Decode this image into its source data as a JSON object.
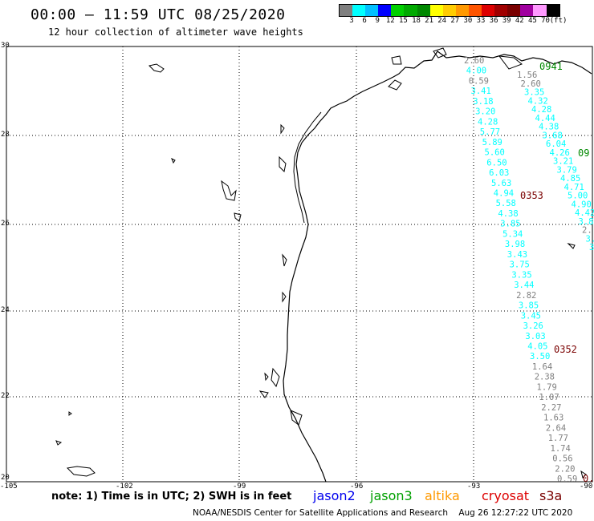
{
  "title": "00:00 – 11:59 UTC 08/25/2020",
  "subtitle": "12 hour collection of altimeter wave heights",
  "scale": {
    "unit_label": "(ft)",
    "colors": [
      "#7f7f7f",
      "#00ffff",
      "#00bfff",
      "#0000ff",
      "#00d000",
      "#00aa00",
      "#008800",
      "#ffff00",
      "#ffcc00",
      "#ff9900",
      "#ff5500",
      "#dd0000",
      "#a00000",
      "#7a0000",
      "#a000a0",
      "#ff99ff",
      "#000000"
    ],
    "labels": [
      "3",
      "6",
      "9",
      "12",
      "15",
      "18",
      "21",
      "24",
      "27",
      "30",
      "33",
      "36",
      "39",
      "42",
      "45",
      "70"
    ]
  },
  "axes": {
    "lat_labels": [
      "30",
      "28",
      "26",
      "24",
      "22",
      "20"
    ],
    "lon_labels": [
      "-105",
      "-102",
      "-99",
      "-96",
      "-93",
      "-90"
    ]
  },
  "passes": [
    {
      "label": "0941",
      "color": "#008800"
    },
    {
      "label": "09",
      "color": "#008800"
    },
    {
      "label": "0353",
      "color": "#7a0000"
    },
    {
      "label": "0352",
      "color": "#7a0000"
    },
    {
      "label": "0.",
      "color": "#7a0000"
    }
  ],
  "track_a": {
    "values": [
      "2.60",
      "4.00",
      "0.59",
      "3.41",
      "3.18",
      "3.20",
      "4.28",
      "5.77",
      "5.89",
      "5.60",
      "6.50",
      "6.03",
      "5.63",
      "4.94",
      "5.58",
      "4.38",
      "3.85",
      "5.34",
      "3.98",
      "3.43",
      "3.75",
      "3.35",
      "3.44",
      "2.82",
      "3.85",
      "3.45",
      "3.26",
      "3.03",
      "4.05",
      "3.50",
      "1.64",
      "2.38",
      "1.79",
      "1.07",
      "2.27",
      "1.63",
      "2.64",
      "1.77",
      "1.74",
      "0.56",
      "2.20",
      "0.59"
    ],
    "colors": [
      "#7f7f7f",
      "#00ffff",
      "#7f7f7f",
      "#00ffff",
      "#00ffff",
      "#00ffff",
      "#00ffff",
      "#00ffff",
      "#00ffff",
      "#00ffff",
      "#00ffff",
      "#00ffff",
      "#00ffff",
      "#00ffff",
      "#00ffff",
      "#00ffff",
      "#00ffff",
      "#00ffff",
      "#00ffff",
      "#00ffff",
      "#00ffff",
      "#00ffff",
      "#00ffff",
      "#7f7f7f",
      "#00ffff",
      "#00ffff",
      "#00ffff",
      "#00ffff",
      "#00ffff",
      "#00ffff",
      "#7f7f7f",
      "#7f7f7f",
      "#7f7f7f",
      "#7f7f7f",
      "#7f7f7f",
      "#7f7f7f",
      "#7f7f7f",
      "#7f7f7f",
      "#7f7f7f",
      "#7f7f7f",
      "#7f7f7f",
      "#7f7f7f"
    ]
  },
  "track_b": {
    "values": [
      "1.56",
      "2.60",
      "3.35",
      "4.32",
      "4.28",
      "4.44",
      "4.38",
      "3.68",
      "6.04",
      "4.26",
      "3.21",
      "3.79",
      "4.85",
      "4.71",
      "5.00",
      "4.90",
      "4.42",
      "3.8",
      "2.",
      "3.",
      "3"
    ],
    "colors": [
      "#7f7f7f",
      "#7f7f7f",
      "#00ffff",
      "#00ffff",
      "#00ffff",
      "#00ffff",
      "#00ffff",
      "#00ffff",
      "#00ffff",
      "#00ffff",
      "#00ffff",
      "#00ffff",
      "#00ffff",
      "#00ffff",
      "#00ffff",
      "#00ffff",
      "#00ffff",
      "#00ffff",
      "#7f7f7f",
      "#00ffff",
      "#00ffff"
    ]
  },
  "note": "note: 1) Time is in UTC; 2) SWH is in feet",
  "satellites": [
    {
      "name": "jason2",
      "color": "#0000ee"
    },
    {
      "name": "jason3",
      "color": "#00a000"
    },
    {
      "name": "altika",
      "color": "#ff9900"
    },
    {
      "name": "cryosat",
      "color": "#dd0000"
    },
    {
      "name": "s3a",
      "color": "#7a0000"
    }
  ],
  "footer": "NOAA/NESDIS Center for Satellite Applications and Research    Aug 26 12:27:22 UTC 2020"
}
